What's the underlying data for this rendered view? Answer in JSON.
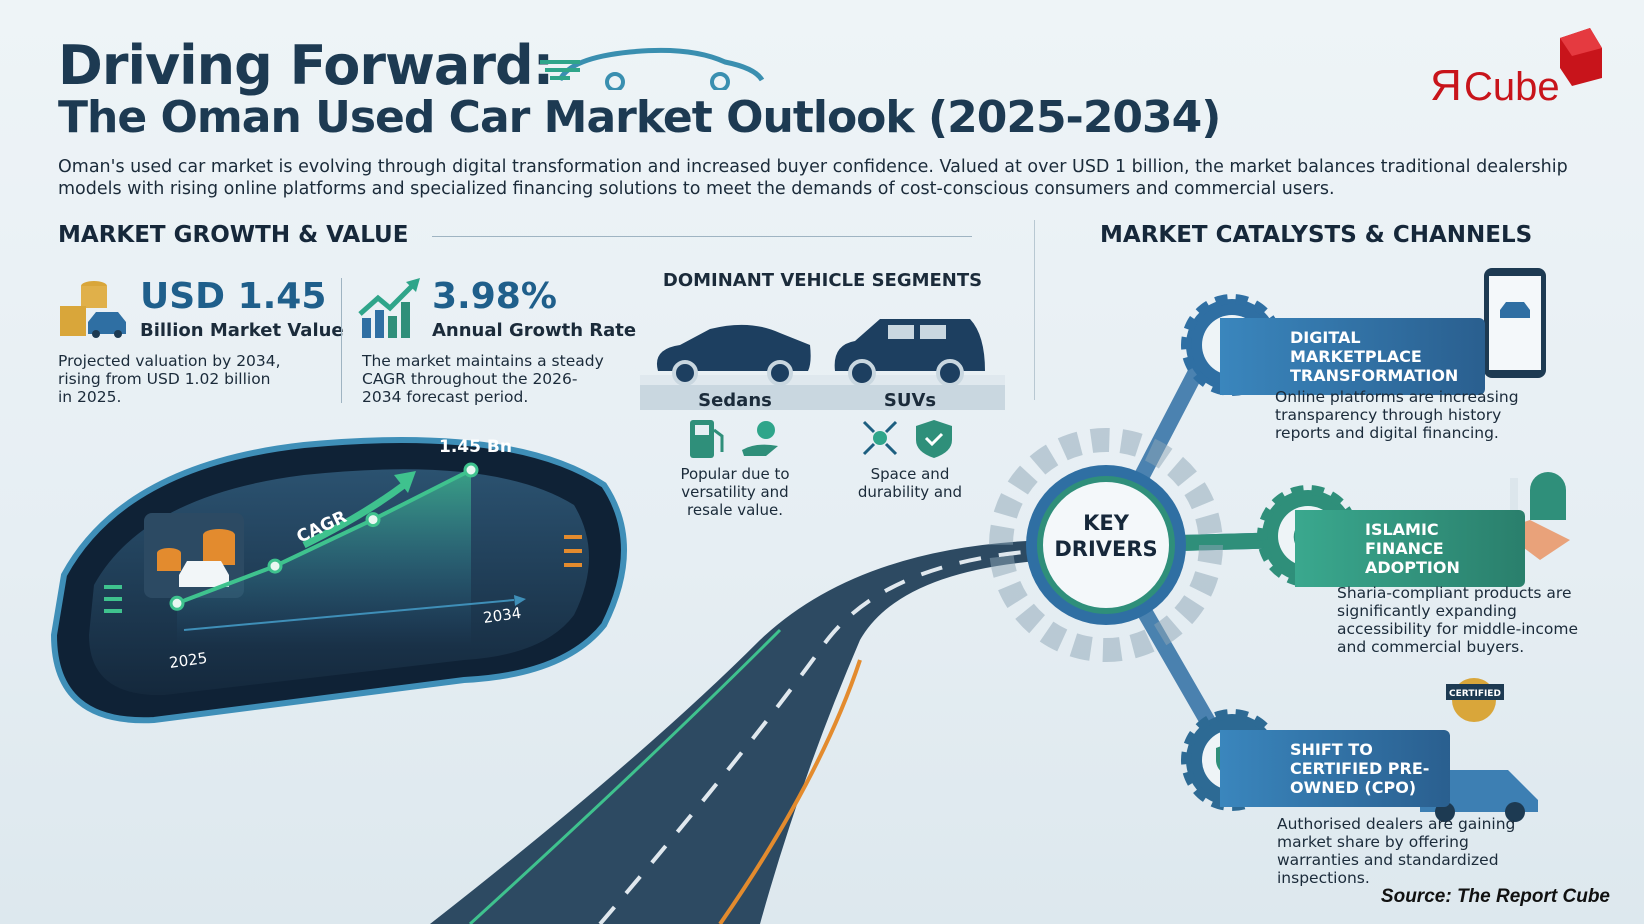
{
  "header": {
    "title_line1": "Driving Forward:",
    "title_line2": "The Oman Used Car Market Outlook (2025-2034)",
    "intro": "Oman's used car market is evolving through digital transformation and increased buyer confidence. Valued at over USD 1 billion, the market balances traditional dealership models with rising online platforms and specialized financing solutions to meet the demands of cost-conscious consumers and commercial users.",
    "logo_text": "ЯCube"
  },
  "growth": {
    "heading": "MARKET GROWTH & VALUE",
    "value": {
      "number": "USD 1.45",
      "label": "Billion Market Value",
      "desc": "Projected valuation by 2034, rising from USD 1.02 billion in 2025.",
      "icon": "coins-car-icon"
    },
    "cagr": {
      "number": "3.98%",
      "label": "Annual Growth Rate",
      "desc": "The market maintains a steady CAGR throughout the 2026-2034 forecast period.",
      "icon": "growth-chart-icon"
    }
  },
  "chart_data": {
    "type": "line",
    "x": [
      2025,
      2028,
      2031,
      2034
    ],
    "values": [
      1.02,
      1.14,
      1.29,
      1.45
    ],
    "start_label": "2025",
    "end_label": "2034",
    "peak_label": "1.45 Bn",
    "arrow_label": "CAGR"
  },
  "segments": {
    "heading": "DOMINANT VEHICLE SEGMENTS",
    "items": [
      {
        "name": "Sedans",
        "desc": "Popular due to versatility and resale value.",
        "icons": [
          "fuel-pump-icon",
          "money-hand-icon"
        ]
      },
      {
        "name": "SUVs",
        "desc": "Space and durability and",
        "icons": [
          "expand-icon",
          "shield-check-icon"
        ]
      }
    ]
  },
  "catalysts": {
    "heading": "MARKET CATALYSTS & CHANNELS",
    "hub": "KEY DRIVERS",
    "items": [
      {
        "title": "DIGITAL MARKETPLACE TRANSFORMATION",
        "desc": "Online platforms are increasing transparency through history reports and digital financing.",
        "icon": "phone-tap-icon",
        "color": "#2f6fa3"
      },
      {
        "title": "ISLAMIC FINANCE ADOPTION",
        "desc": "Sharia-compliant products are significantly expanding accessibility for middle-income and commercial buyers.",
        "icon": "crescent-icon",
        "color": "#2f8f7a"
      },
      {
        "title": "SHIFT TO CERTIFIED PRE-OWNED (CPO)",
        "desc": "Authorised dealers are gaining market share by offering warranties and standardized inspections.",
        "icon": "shield-check-icon",
        "color": "#2d6a94",
        "badge": "CERTIFIED"
      }
    ]
  },
  "source": "Source: The Report Cube",
  "colors": {
    "navy": "#1d3a52",
    "blue": "#2f6fa3",
    "teal": "#2f8f7a",
    "logo_red": "#d0161c"
  }
}
